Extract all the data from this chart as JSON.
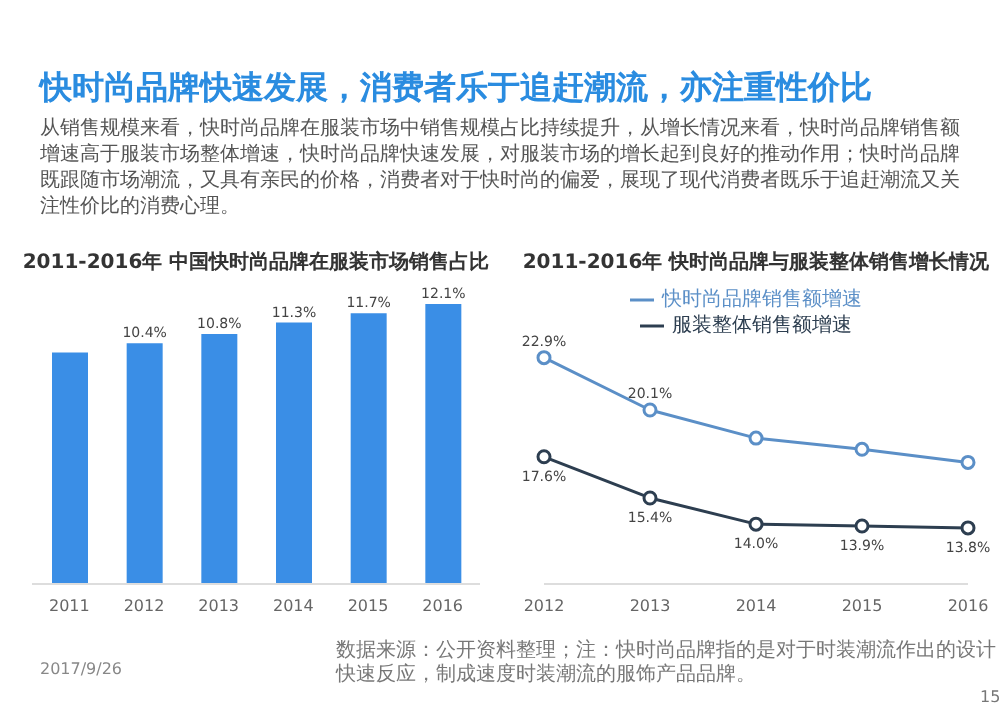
{
  "chart_data": [
    {
      "type": "other",
      "title": "快时尚品牌快速发展，消费者乐于追赶潮流，亦注重性价比",
      "subtitle": "从销售规模来看，快时尚品牌在服装市场中销售规模占比持续提升，从增长情况来看，快时尚品牌销售额增速高于服装市场整体增速，快时尚品牌快速发展，对服装市场的增长起到良好的推动作用；快时尚品牌既跟随市场潮流，又具有亲民的价格，消费者对于快时尚的偏爱，展现了现代消费者既乐于追赶潮流又关注性价比的消费心理。",
      "annotations": [
        "2017/9/26"
      ]
    },
    {
      "type": "bar",
      "title": "2011-2016年 中国快时尚品牌在服装市场销售占比",
      "categories": [
        "2011",
        "2012",
        "2013",
        "2014",
        "2015",
        "2016"
      ],
      "values": [
        10.0,
        10.4,
        10.8,
        11.3,
        11.7,
        12.1
      ],
      "value_labels": [
        null,
        "10.4%",
        "10.8%",
        "11.3%",
        "11.7%",
        "12.1%"
      ],
      "color": "#3a8ee6",
      "tick_labels": "x"
    },
    {
      "type": "line",
      "title": "2011-2016年 快时尚品牌与服装整体销售增长情况",
      "categories": [
        "2012",
        "2013",
        "2014",
        "2015",
        "2016"
      ],
      "series": [
        {
          "name": "快时尚品牌销售额增速",
          "color": "#5b8fc7",
          "values": [
            22.9,
            20.1,
            18.6,
            18.0,
            17.3
          ],
          "value_labels": [
            "22.9%",
            "20.1%",
            null,
            null,
            null
          ]
        },
        {
          "name": "服装整体销售额增速",
          "color": "#2d3e50",
          "values": [
            17.6,
            15.4,
            14.0,
            13.9,
            13.8
          ],
          "value_labels": [
            "17.6%",
            "15.4%",
            "14.0%",
            "13.9%",
            "13.8%"
          ]
        }
      ],
      "marker": "circle",
      "legend": "top",
      "tick_labels": "x",
      "annotations": [
        "数据来源：公开资料整理；注：快时尚品牌指的是对于时装潮流作出的设计快速反应，制成速度时装潮流的服饰产品品牌。",
        "15"
      ]
    }
  ]
}
